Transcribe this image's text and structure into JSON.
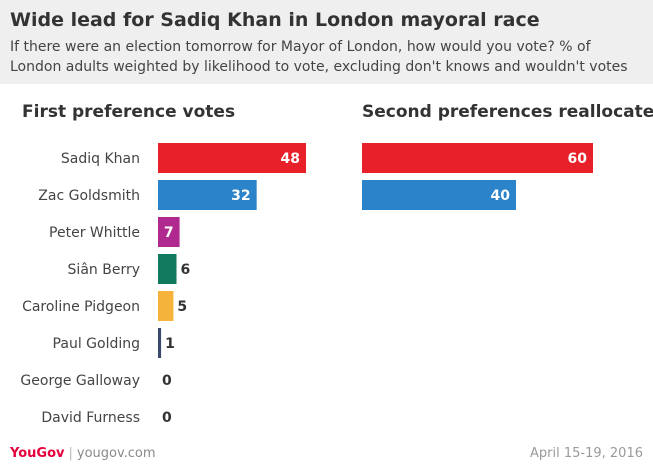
{
  "header": {
    "title": "Wide lead for Sadiq Khan in London mayoral race",
    "subtitle": "If there were an election tomorrow for Mayor of London, how would you vote? % of London adults weighted by likelihood to vote, excluding don't knows and wouldn't votes"
  },
  "footer": {
    "logo": "YouGov",
    "separator": "|",
    "site": "yougov.com",
    "date": "April 15-19, 2016"
  },
  "chart_data": [
    {
      "type": "bar",
      "orientation": "horizontal",
      "title": "First preference votes",
      "categories": [
        "Sadiq Khan",
        "Zac Goldsmith",
        "Peter Whittle",
        "Siân Berry",
        "Caroline Pidgeon",
        "Paul Golding",
        "George Galloway",
        "David Furness"
      ],
      "values": [
        48,
        32,
        7,
        6,
        5,
        1,
        0,
        0
      ],
      "colors": [
        "#e8202a",
        "#2b83c9",
        "#b0298f",
        "#117a5e",
        "#f6b33b",
        "#3b4a6b",
        "#888888",
        "#888888"
      ],
      "xlim": [
        0,
        60
      ],
      "grid": false
    },
    {
      "type": "bar",
      "orientation": "horizontal",
      "title": "Second preferences reallocated",
      "categories": [
        "Sadiq Khan",
        "Zac Goldsmith"
      ],
      "values": [
        60,
        40
      ],
      "colors": [
        "#e8202a",
        "#2b83c9"
      ],
      "xlim": [
        0,
        60
      ],
      "grid": false
    }
  ]
}
